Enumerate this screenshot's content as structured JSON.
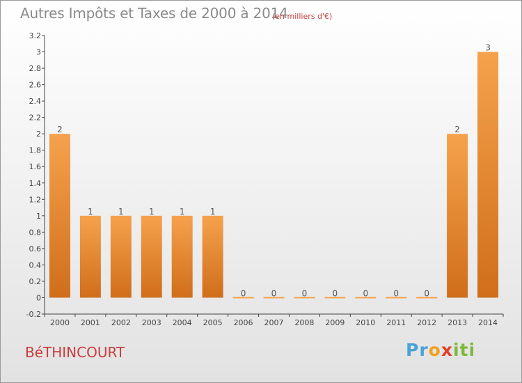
{
  "header": {
    "title": "Autres Impôts et Taxes de 2000 à 2014",
    "unit": "(en milliers d'€)"
  },
  "footer": {
    "commune": "BéTHINCOURT",
    "logo": {
      "parts": [
        "Pr",
        "o",
        "x",
        "iti"
      ],
      "colors": [
        "#4aa3d6",
        "#f0a020",
        "#e0402c",
        "#7cb83a"
      ]
    }
  },
  "chart_data": {
    "type": "bar",
    "title": "Autres Impôts et Taxes de 2000 à 2014",
    "subtitle": "(en milliers d'€)",
    "xlabel": "",
    "ylabel": "",
    "categories": [
      "2000",
      "2001",
      "2002",
      "2003",
      "2004",
      "2005",
      "2006",
      "2007",
      "2008",
      "2009",
      "2010",
      "2011",
      "2012",
      "2013",
      "2014"
    ],
    "values": [
      2,
      1,
      1,
      1,
      1,
      1,
      0,
      0,
      0,
      0,
      0,
      0,
      0,
      2,
      3
    ],
    "data_labels": [
      "2",
      "1",
      "1",
      "1",
      "1",
      "1",
      "0",
      "0",
      "0",
      "0",
      "0",
      "0",
      "0",
      "2",
      "3"
    ],
    "ylim": [
      -0.2,
      3.2
    ],
    "yticks": [
      -0.2,
      0,
      0.2,
      0.4,
      0.6,
      0.8,
      1,
      1.2,
      1.4,
      1.6,
      1.8,
      2,
      2.2,
      2.4,
      2.6,
      2.8,
      3,
      3.2
    ],
    "ytick_labels": [
      "-0.2",
      "0",
      "0.2",
      "0.4",
      "0.6",
      "0.8",
      "1",
      "1.2",
      "1.4",
      "1.6",
      "1.8",
      "2",
      "2.2",
      "2.4",
      "2.6",
      "2.8",
      "3",
      "3.2"
    ],
    "grid": false,
    "bar_color_light": "#f5a24d",
    "bar_color_dark": "#d06e1a",
    "legend": "none"
  }
}
